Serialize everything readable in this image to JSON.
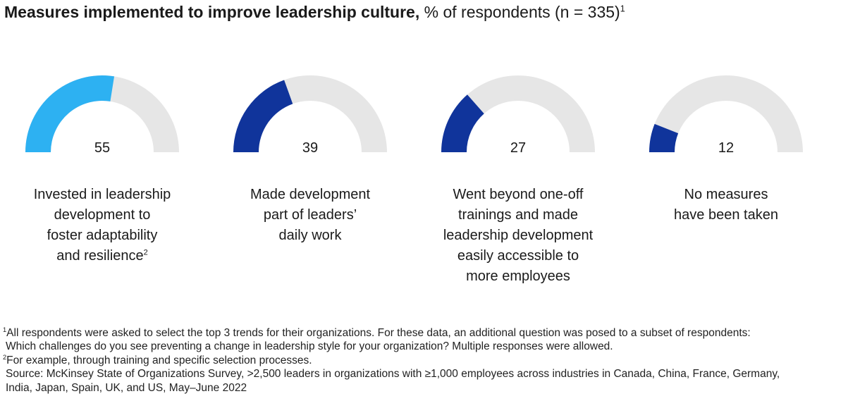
{
  "title": {
    "bold": "Measures implemented to improve leadership culture,",
    "rest": " % of respondents (n = 335)",
    "note": "1"
  },
  "colors": {
    "highlight": "#2db1f2",
    "accent": "#10349b",
    "track": "#e6e6e6"
  },
  "chart_data": {
    "type": "gauge",
    "range": [
      0,
      100
    ],
    "categories": [
      "Invested in leadership development to foster adaptability and resilience",
      "Made development part of leaders' daily work",
      "Went beyond one-off trainings and made leadership development easily accessible to more employees",
      "No measures have been taken"
    ],
    "values": [
      55,
      39,
      27,
      12
    ],
    "value_labels": [
      "55",
      "39",
      "27",
      "12"
    ],
    "highlighted": 0
  },
  "labels": [
    {
      "lines": [
        "Invested in leadership",
        "development to",
        "foster adaptability",
        "and resilience"
      ],
      "note": "2"
    },
    {
      "lines": [
        "Made development",
        "part of leaders’",
        "daily work"
      ],
      "note": ""
    },
    {
      "lines": [
        "Went beyond one-off",
        "trainings and made",
        "leadership development",
        "easily accessible to",
        "more employees"
      ],
      "note": ""
    },
    {
      "lines": [
        "No measures",
        "have been taken"
      ],
      "note": ""
    }
  ],
  "footnotes": {
    "note1_mark": "1",
    "note1_line1": "All respondents were asked to select the top 3 trends for their organizations. For these data, an additional question was posed to a subset of respondents:",
    "note1_line2": "Which challenges do you see preventing a change in leadership style for your organization? Multiple responses were allowed.",
    "note2_mark": "2",
    "note2_line1": "For example, through training and specific selection processes.",
    "source_line1": "Source: McKinsey State of Organizations Survey, >2,500 leaders in organizations with ≥1,000 employees across industries in Canada, China, France, Germany,",
    "source_line2": "India, Japan, Spain, UK, and US, May–June 2022"
  }
}
